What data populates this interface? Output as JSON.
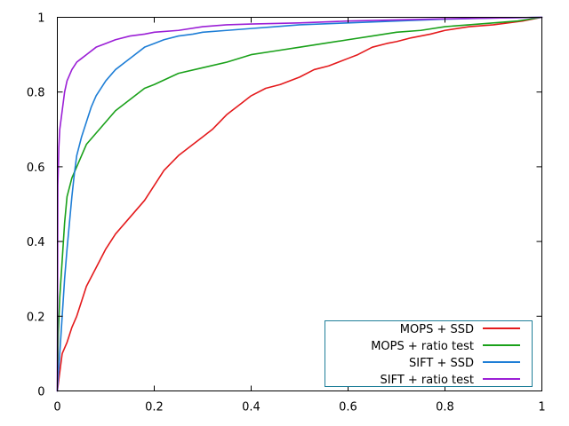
{
  "chart_data": {
    "type": "line",
    "title": "",
    "xlabel": "",
    "ylabel": "",
    "xlim": [
      0,
      1
    ],
    "ylim": [
      0,
      1
    ],
    "x_ticks": [
      "0",
      "0.2",
      "0.4",
      "0.6",
      "0.8",
      "1"
    ],
    "y_ticks": [
      "0",
      "0.2",
      "0.4",
      "0.6",
      "0.8",
      "1"
    ],
    "grid": false,
    "legend_position": "bottom-right",
    "series": [
      {
        "name": "MOPS + SSD",
        "color": "#e41a1c",
        "x": [
          0,
          0.005,
          0.01,
          0.02,
          0.03,
          0.04,
          0.05,
          0.06,
          0.08,
          0.1,
          0.12,
          0.14,
          0.16,
          0.18,
          0.2,
          0.22,
          0.25,
          0.28,
          0.3,
          0.32,
          0.35,
          0.38,
          0.4,
          0.43,
          0.46,
          0.5,
          0.53,
          0.56,
          0.6,
          0.62,
          0.65,
          0.68,
          0.7,
          0.73,
          0.77,
          0.8,
          0.85,
          0.9,
          0.93,
          0.96,
          1.0
        ],
        "y": [
          0,
          0.05,
          0.1,
          0.13,
          0.17,
          0.2,
          0.24,
          0.28,
          0.33,
          0.38,
          0.42,
          0.45,
          0.48,
          0.51,
          0.55,
          0.59,
          0.63,
          0.66,
          0.68,
          0.7,
          0.74,
          0.77,
          0.79,
          0.81,
          0.82,
          0.84,
          0.86,
          0.87,
          0.89,
          0.9,
          0.92,
          0.93,
          0.935,
          0.945,
          0.955,
          0.965,
          0.975,
          0.98,
          0.985,
          0.99,
          1.0
        ]
      },
      {
        "name": "MOPS + ratio test",
        "color": "#1aa11a",
        "x": [
          0,
          0.002,
          0.005,
          0.01,
          0.015,
          0.02,
          0.03,
          0.04,
          0.05,
          0.06,
          0.08,
          0.1,
          0.12,
          0.15,
          0.18,
          0.2,
          0.25,
          0.3,
          0.35,
          0.4,
          0.45,
          0.5,
          0.55,
          0.6,
          0.65,
          0.7,
          0.75,
          0.8,
          0.85,
          0.9,
          0.95,
          1.0
        ],
        "y": [
          0,
          0.15,
          0.25,
          0.35,
          0.45,
          0.52,
          0.57,
          0.6,
          0.63,
          0.66,
          0.69,
          0.72,
          0.75,
          0.78,
          0.81,
          0.82,
          0.85,
          0.865,
          0.88,
          0.9,
          0.91,
          0.92,
          0.93,
          0.94,
          0.95,
          0.96,
          0.965,
          0.975,
          0.98,
          0.985,
          0.99,
          1.0
        ]
      },
      {
        "name": "SIFT + SSD",
        "color": "#1e7ed6",
        "x": [
          0,
          0.005,
          0.01,
          0.015,
          0.02,
          0.025,
          0.03,
          0.035,
          0.04,
          0.05,
          0.06,
          0.07,
          0.08,
          0.1,
          0.12,
          0.14,
          0.16,
          0.18,
          0.2,
          0.22,
          0.25,
          0.28,
          0.3,
          0.35,
          0.4,
          0.45,
          0.5,
          0.6,
          0.7,
          0.8,
          0.9,
          1.0
        ],
        "y": [
          0,
          0.1,
          0.2,
          0.3,
          0.38,
          0.45,
          0.52,
          0.58,
          0.63,
          0.68,
          0.72,
          0.76,
          0.79,
          0.83,
          0.86,
          0.88,
          0.9,
          0.92,
          0.93,
          0.94,
          0.95,
          0.955,
          0.96,
          0.965,
          0.97,
          0.975,
          0.98,
          0.985,
          0.99,
          0.995,
          0.998,
          1.0
        ]
      },
      {
        "name": "SIFT + ratio test",
        "color": "#9b1fd6",
        "x": [
          0,
          0.001,
          0.003,
          0.005,
          0.01,
          0.015,
          0.02,
          0.03,
          0.04,
          0.05,
          0.06,
          0.08,
          0.1,
          0.12,
          0.15,
          0.18,
          0.2,
          0.25,
          0.3,
          0.35,
          0.4,
          0.5,
          0.6,
          0.7,
          0.8,
          0.9,
          1.0
        ],
        "y": [
          0,
          0.55,
          0.65,
          0.7,
          0.75,
          0.8,
          0.83,
          0.86,
          0.88,
          0.89,
          0.9,
          0.92,
          0.93,
          0.94,
          0.95,
          0.955,
          0.96,
          0.965,
          0.975,
          0.98,
          0.982,
          0.985,
          0.99,
          0.993,
          0.996,
          0.998,
          1.0
        ]
      }
    ]
  }
}
